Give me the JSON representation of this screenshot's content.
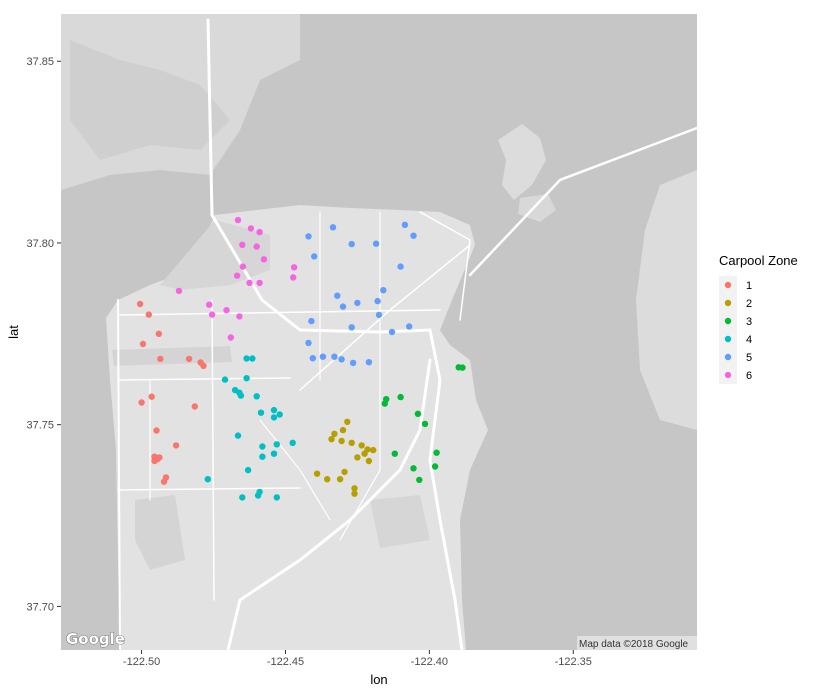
{
  "chart_data": {
    "type": "scatter",
    "title": "",
    "xlabel": "lon",
    "ylabel": "lat",
    "xlim": [
      -122.528,
      -122.307
    ],
    "ylim": [
      37.688,
      37.863
    ],
    "x_ticks": [
      -122.5,
      -122.45,
      -122.4,
      -122.35
    ],
    "x_tick_labels": [
      "-122.50",
      "-122.45",
      "-122.40",
      "-122.35"
    ],
    "y_ticks": [
      37.7,
      37.75,
      37.8,
      37.85
    ],
    "y_tick_labels": [
      "37.70",
      "37.75",
      "37.80",
      "37.85"
    ],
    "legend_title": "Carpool Zone",
    "legend_position": "right",
    "basemap": "Google roadmap (grayscale)",
    "attribution": "Map data ©2018 Google",
    "logo_text": "Google",
    "series": [
      {
        "name": "1",
        "color": "#F8766D",
        "points": [
          [
            -122.5005,
            37.7832
          ],
          [
            -122.4975,
            37.7803
          ],
          [
            -122.494,
            37.775
          ],
          [
            -122.4995,
            37.7722
          ],
          [
            -122.4935,
            37.7681
          ],
          [
            -122.4835,
            37.7681
          ],
          [
            -122.4795,
            37.7671
          ],
          [
            -122.4785,
            37.7662
          ],
          [
            -122.4965,
            37.7577
          ],
          [
            -122.5,
            37.7561
          ],
          [
            -122.4815,
            37.755
          ],
          [
            -122.4948,
            37.7484
          ],
          [
            -122.488,
            37.7443
          ],
          [
            -122.4955,
            37.7412
          ],
          [
            -122.4945,
            37.7405
          ],
          [
            -122.4955,
            37.74
          ],
          [
            -122.4915,
            37.7355
          ],
          [
            -122.4922,
            37.7343
          ],
          [
            -122.495,
            37.7408
          ],
          [
            -122.4938,
            37.741
          ]
        ]
      },
      {
        "name": "2",
        "color": "#B79F00",
        "points": [
          [
            -122.4285,
            37.7508
          ],
          [
            -122.43,
            37.7485
          ],
          [
            -122.433,
            37.7475
          ],
          [
            -122.434,
            37.746
          ],
          [
            -122.4305,
            37.7455
          ],
          [
            -122.427,
            37.745
          ],
          [
            -122.4235,
            37.7443
          ],
          [
            -122.4225,
            37.742
          ],
          [
            -122.425,
            37.741
          ],
          [
            -122.421,
            37.74
          ],
          [
            -122.4295,
            37.737
          ],
          [
            -122.439,
            37.7365
          ],
          [
            -122.4355,
            37.735
          ],
          [
            -122.431,
            37.735
          ],
          [
            -122.426,
            37.7325
          ],
          [
            -122.426,
            37.731
          ],
          [
            -122.4215,
            37.7432
          ],
          [
            -122.4195,
            37.743
          ]
        ]
      },
      {
        "name": "3",
        "color": "#00BA38",
        "points": [
          [
            -122.3898,
            37.7658
          ],
          [
            -122.3885,
            37.7657
          ],
          [
            -122.41,
            37.7576
          ],
          [
            -122.415,
            37.757
          ],
          [
            -122.4155,
            37.7558
          ],
          [
            -122.404,
            37.753
          ],
          [
            -122.4015,
            37.7502
          ],
          [
            -122.412,
            37.742
          ],
          [
            -122.3975,
            37.7423
          ],
          [
            -122.398,
            37.7385
          ],
          [
            -122.4055,
            37.738
          ],
          [
            -122.4035,
            37.7348
          ]
        ]
      },
      {
        "name": "4",
        "color": "#00BFC4",
        "points": [
          [
            -122.4635,
            37.7682
          ],
          [
            -122.4615,
            37.7682
          ],
          [
            -122.471,
            37.7624
          ],
          [
            -122.4635,
            37.7628
          ],
          [
            -122.4675,
            37.7595
          ],
          [
            -122.466,
            37.7588
          ],
          [
            -122.4655,
            37.758
          ],
          [
            -122.46,
            37.7578
          ],
          [
            -122.454,
            37.754
          ],
          [
            -122.452,
            37.7528
          ],
          [
            -122.4585,
            37.7533
          ],
          [
            -122.454,
            37.752
          ],
          [
            -122.4665,
            37.747
          ],
          [
            -122.4475,
            37.745
          ],
          [
            -122.453,
            37.7446
          ],
          [
            -122.458,
            37.744
          ],
          [
            -122.458,
            37.7412
          ],
          [
            -122.454,
            37.742
          ],
          [
            -122.463,
            37.7375
          ],
          [
            -122.477,
            37.735
          ],
          [
            -122.465,
            37.73
          ],
          [
            -122.4595,
            37.7305
          ],
          [
            -122.459,
            37.7315
          ],
          [
            -122.453,
            37.73
          ]
        ]
      },
      {
        "name": "5",
        "color": "#619CFF",
        "points": [
          [
            -122.442,
            37.8018
          ],
          [
            -122.4335,
            37.8043
          ],
          [
            -122.4085,
            37.805
          ],
          [
            -122.4055,
            37.802
          ],
          [
            -122.427,
            37.7997
          ],
          [
            -122.4185,
            37.7998
          ],
          [
            -122.44,
            37.7963
          ],
          [
            -122.41,
            37.7935
          ],
          [
            -122.416,
            37.787
          ],
          [
            -122.432,
            37.7855
          ],
          [
            -122.425,
            37.7835
          ],
          [
            -122.418,
            37.784
          ],
          [
            -122.43,
            37.7825
          ],
          [
            -122.4175,
            37.7802
          ],
          [
            -122.441,
            37.7785
          ],
          [
            -122.427,
            37.7768
          ],
          [
            -122.407,
            37.777
          ],
          [
            -122.413,
            37.7755
          ],
          [
            -122.442,
            37.7725
          ],
          [
            -122.4405,
            37.7683
          ],
          [
            -122.437,
            37.7687
          ],
          [
            -122.433,
            37.7687
          ],
          [
            -122.4305,
            37.768
          ],
          [
            -122.4265,
            37.767
          ],
          [
            -122.421,
            37.7672
          ]
        ]
      },
      {
        "name": "6",
        "color": "#F564E3",
        "points": [
          [
            -122.4665,
            37.8063
          ],
          [
            -122.462,
            37.804
          ],
          [
            -122.459,
            37.803
          ],
          [
            -122.465,
            37.7995
          ],
          [
            -122.46,
            37.799
          ],
          [
            -122.4575,
            37.7955
          ],
          [
            -122.4648,
            37.7935
          ],
          [
            -122.4668,
            37.791
          ],
          [
            -122.4625,
            37.789
          ],
          [
            -122.459,
            37.789
          ],
          [
            -122.447,
            37.7933
          ],
          [
            -122.4473,
            37.7905
          ],
          [
            -122.487,
            37.7868
          ],
          [
            -122.4765,
            37.783
          ],
          [
            -122.4705,
            37.7815
          ],
          [
            -122.4755,
            37.7803
          ],
          [
            -122.466,
            37.7798
          ],
          [
            -122.469,
            37.774
          ]
        ]
      }
    ]
  }
}
